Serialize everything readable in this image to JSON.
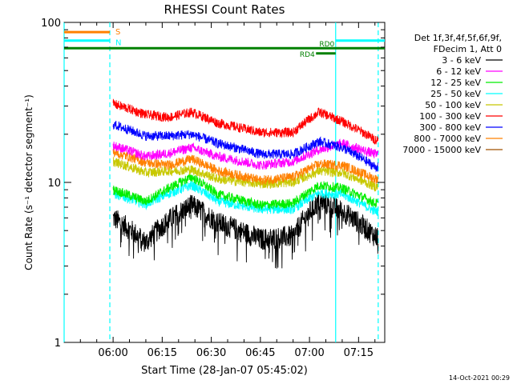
{
  "chart_data": {
    "type": "line",
    "title": "RHESSI Count Rates",
    "xlabel": "Start Time (28-Jan-07 05:45:02)",
    "ylabel": "Count Rate (s⁻¹ detector segment⁻¹)",
    "y_scale": "log",
    "ylim": [
      1,
      100
    ],
    "xlim": [
      "05:45:02",
      "07:23:00"
    ],
    "x_ticks": [
      "06:00",
      "06:15",
      "06:30",
      "06:45",
      "07:00",
      "07:15"
    ],
    "y_ticks": [
      "1",
      "10",
      "100"
    ],
    "legend_header": [
      "Det 1f,3f,4f,5f,6f,9f,",
      "FDecim 1, Att 0"
    ],
    "legend_position": "right",
    "timestamp": "14-Oct-2021 00:29",
    "time_knots": [
      "06:00",
      "06:10",
      "06:17",
      "06:24",
      "06:32",
      "06:45",
      "06:55",
      "07:03",
      "07:10",
      "07:20"
    ],
    "series": [
      {
        "name": "3 - 6 keV",
        "color": "#000000",
        "values": [
          6.0,
          4.2,
          5.8,
          7.2,
          5.6,
          4.4,
          4.6,
          7.6,
          6.6,
          4.6
        ]
      },
      {
        "name": "6 - 12 keV",
        "color": "#ff00ff",
        "values": [
          17.0,
          14.5,
          15.2,
          16.5,
          14.5,
          12.8,
          13.5,
          16.0,
          17.5,
          15.0
        ]
      },
      {
        "name": "12 - 25 keV",
        "color": "#00ee00",
        "values": [
          9.0,
          7.6,
          9.2,
          10.8,
          8.4,
          7.2,
          7.4,
          9.6,
          9.2,
          7.4
        ]
      },
      {
        "name": "25 - 50 keV",
        "color": "#00ffff",
        "values": [
          8.5,
          7.3,
          8.5,
          9.6,
          7.6,
          6.8,
          6.8,
          8.6,
          8.4,
          6.6
        ]
      },
      {
        "name": "50 - 100 keV",
        "color": "#c8c800",
        "values": [
          13.5,
          11.5,
          11.8,
          12.0,
          10.5,
          9.8,
          10.0,
          11.8,
          11.5,
          9.4
        ]
      },
      {
        "name": "100 - 300 keV",
        "color": "#ff0000",
        "values": [
          31.0,
          26.5,
          25.5,
          27.5,
          23.5,
          20.5,
          20.5,
          27.5,
          24.0,
          18.5
        ]
      },
      {
        "name": "300 - 800 keV",
        "color": "#0000ff",
        "values": [
          23.0,
          19.5,
          19.5,
          20.0,
          17.5,
          15.0,
          15.0,
          18.0,
          16.5,
          12.5
        ]
      },
      {
        "name": "800 - 7000 keV",
        "color": "#ff8000",
        "values": [
          15.5,
          13.3,
          12.8,
          14.0,
          11.8,
          10.3,
          10.8,
          13.0,
          12.8,
          10.5
        ]
      },
      {
        "name": "7000 - 15000 keV",
        "color": "#a05000",
        "values": [
          null,
          null,
          null,
          null,
          null,
          null,
          null,
          null,
          null,
          null
        ]
      }
    ],
    "status_bars": [
      {
        "label": "S",
        "color": "#ff8000",
        "start": "05:45:02",
        "end": "05:59:00",
        "level": 87
      },
      {
        "label": "N",
        "color": "#00ffff",
        "start": "05:45:02",
        "end": "05:59:00",
        "level": 77
      },
      {
        "label": "N",
        "color": "#00ffff",
        "start": "07:08:00",
        "end": "07:23:00",
        "level": 77
      },
      {
        "label": "RD0",
        "color": "#008000",
        "start": "05:45:02",
        "end": "07:23:00",
        "level": 69
      },
      {
        "label": "RD4",
        "color": "#008000",
        "start": "07:02:00",
        "end": "07:08:00",
        "level": 64
      }
    ],
    "status_labels": {
      "s": "S",
      "n": "N",
      "rd0": "RD0",
      "rd4": "RD4"
    },
    "markers": {
      "dashed_cyan": [
        "05:59:00",
        "07:21:00"
      ],
      "solid_cyan": [
        "05:45:02",
        "07:08:00"
      ]
    }
  }
}
